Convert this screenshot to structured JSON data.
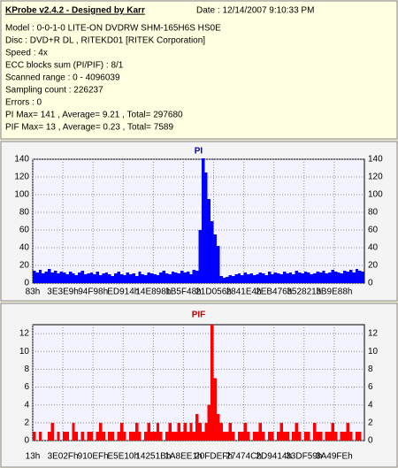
{
  "info": {
    "title": "KProbe v2.4.2 - Designed by Karr",
    "date": "Date : 12/14/2007 9:10:33 PM",
    "lines": [
      "Model : 0-0-1-0 LITE-ON DVDRW SHM-165H6S HS0E",
      "Disc : DVD+R DL , RITEKD01 [RITEK Corporation]",
      "Speed : 4x",
      "ECC blocks sum (PI/PIF) : 8/1",
      "Scanned range : 0 - 4096039",
      "Sampling count : 226237",
      "Errors : 0",
      "PI Max= 141 , Average= 9.21 , Total= 297680",
      "PIF Max= 13 , Average= 0.23 , Total= 7589"
    ]
  },
  "chart_data": [
    {
      "type": "bar",
      "title": "PI",
      "color": "#0000ff",
      "title_color": "#0000c0",
      "grid": true,
      "ylim": [
        0,
        140
      ],
      "yticks": [
        0,
        20,
        40,
        60,
        80,
        100,
        120,
        140
      ],
      "categories": [
        "83h",
        null,
        null,
        null,
        null,
        null,
        null,
        null,
        null,
        null,
        "3E3E9h",
        null,
        null,
        null,
        null,
        null,
        null,
        null,
        null,
        null,
        "94F98h",
        null,
        null,
        null,
        null,
        null,
        null,
        null,
        null,
        null,
        "ED914h",
        null,
        null,
        null,
        null,
        null,
        null,
        null,
        null,
        null,
        "14E898h",
        null,
        null,
        null,
        null,
        null,
        null,
        null,
        null,
        null,
        "1B5F48h",
        null,
        null,
        null,
        null,
        null,
        null,
        null,
        null,
        null,
        "21D056h",
        null,
        null,
        null,
        null,
        null,
        null,
        null,
        null,
        null,
        "2841E4h",
        null,
        null,
        null,
        null,
        null,
        null,
        null,
        null,
        null,
        "2EB476h",
        null,
        null,
        null,
        null,
        null,
        null,
        null,
        null,
        null,
        "352821h",
        null,
        null,
        null,
        null,
        null,
        null,
        null,
        null,
        null,
        "3B9E88h",
        null,
        null,
        null,
        null,
        null,
        null,
        null,
        null,
        null
      ],
      "values": [
        14,
        12,
        15,
        11,
        13,
        16,
        12,
        14,
        11,
        13,
        12,
        10,
        13,
        11,
        9,
        12,
        14,
        10,
        11,
        12,
        10,
        13,
        9,
        11,
        12,
        10,
        8,
        11,
        13,
        10,
        9,
        12,
        10,
        11,
        8,
        13,
        10,
        9,
        12,
        11,
        10,
        9,
        12,
        14,
        11,
        10,
        13,
        12,
        11,
        14,
        12,
        13,
        10,
        15,
        14,
        60,
        141,
        125,
        95,
        70,
        55,
        42,
        8,
        6,
        7,
        9,
        8,
        10,
        11,
        9,
        12,
        10,
        11,
        9,
        10,
        12,
        11,
        9,
        13,
        10,
        12,
        11,
        10,
        13,
        11,
        12,
        10,
        14,
        12,
        11,
        13,
        12,
        10,
        11,
        13,
        12,
        14,
        11,
        12,
        15,
        13,
        12,
        11,
        14,
        13,
        15,
        12,
        16,
        14,
        13
      ]
    },
    {
      "type": "bar",
      "title": "PIF",
      "color": "#ff0000",
      "title_color": "#c00000",
      "grid": true,
      "ylim": [
        0,
        13
      ],
      "yticks": [
        0,
        2,
        4,
        6,
        8,
        10,
        12
      ],
      "categories": [
        "13h",
        null,
        null,
        null,
        null,
        null,
        null,
        null,
        null,
        null,
        "3E02Fh",
        null,
        null,
        null,
        null,
        null,
        null,
        null,
        null,
        null,
        "910EFh",
        null,
        null,
        null,
        null,
        null,
        null,
        null,
        null,
        null,
        "E5E10h",
        null,
        null,
        null,
        null,
        null,
        null,
        null,
        null,
        null,
        "14251Bh",
        null,
        null,
        null,
        null,
        null,
        null,
        null,
        null,
        null,
        "1A8EE1h",
        null,
        null,
        null,
        null,
        null,
        null,
        null,
        null,
        null,
        "20FDEFh",
        null,
        null,
        null,
        null,
        null,
        null,
        null,
        null,
        null,
        "27474Ch",
        null,
        null,
        null,
        null,
        null,
        null,
        null,
        null,
        null,
        "2D9414h",
        null,
        null,
        null,
        null,
        null,
        null,
        null,
        null,
        null,
        "33DF59h",
        null,
        null,
        null,
        null,
        null,
        null,
        null,
        null,
        null,
        "3A49FEh",
        null,
        null,
        null,
        null,
        null,
        null,
        null,
        null,
        null
      ],
      "values": [
        1,
        0,
        1,
        0,
        0,
        1,
        2,
        0,
        1,
        0,
        1,
        1,
        0,
        2,
        1,
        0,
        1,
        0,
        1,
        1,
        0,
        1,
        2,
        1,
        0,
        1,
        1,
        0,
        1,
        2,
        1,
        0,
        1,
        1,
        2,
        1,
        0,
        1,
        2,
        1,
        1,
        2,
        1,
        0,
        1,
        2,
        1,
        1,
        2,
        1,
        2,
        1,
        2,
        1,
        3,
        2,
        1,
        2,
        4,
        13,
        7,
        3,
        2,
        1,
        1,
        2,
        1,
        0,
        1,
        1,
        2,
        1,
        0,
        1,
        1,
        2,
        1,
        0,
        1,
        1,
        0,
        1,
        2,
        1,
        1,
        0,
        1,
        2,
        1,
        0,
        1,
        1,
        0,
        2,
        1,
        1,
        0,
        1,
        1,
        2,
        1,
        0,
        1,
        1,
        2,
        1,
        0,
        1,
        1,
        0
      ]
    }
  ]
}
